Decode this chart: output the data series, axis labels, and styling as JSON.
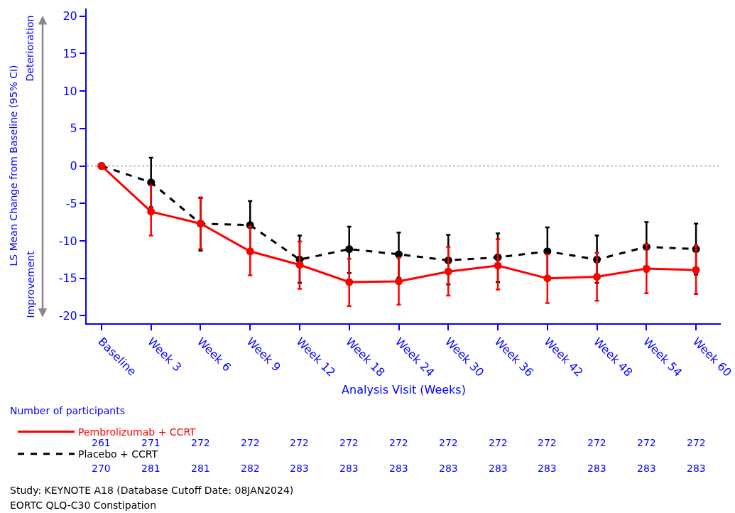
{
  "chart_data": {
    "type": "line",
    "xlabel": "Analysis Visit (Weeks)",
    "ylabel": "LS Mean Change from Baseline (95% CI)",
    "categories": [
      "Baseline",
      "Week 3",
      "Week 6",
      "Week 9",
      "Week 12",
      "Week 18",
      "Week 24",
      "Week 30",
      "Week 36",
      "Week 42",
      "Week 48",
      "Week 54",
      "Week 60"
    ],
    "series": [
      {
        "name": "Pembrolizumab + CCRT",
        "color": "#ff0000",
        "line_style": "solid",
        "values": [
          0,
          -6.1,
          -7.7,
          -11.4,
          -13.2,
          -15.5,
          -15.4,
          -14.1,
          -13.3,
          -15.0,
          -14.8,
          -13.7,
          -13.9
        ],
        "errors": [
          null,
          [
            -9.3,
            -2.6
          ],
          [
            -11.1,
            -4.2
          ],
          [
            -14.6,
            -8.1
          ],
          [
            -16.4,
            -10.1
          ],
          [
            -18.7,
            -12.4
          ],
          [
            -18.5,
            -12.3
          ],
          [
            -17.3,
            -10.8
          ],
          [
            -16.5,
            -9.8
          ],
          [
            -18.3,
            -11.8
          ],
          [
            -18.0,
            -11.6
          ],
          [
            -17.0,
            -10.5
          ],
          [
            -17.1,
            -10.6
          ]
        ]
      },
      {
        "name": "Placebo + CCRT",
        "color": "#000000",
        "line_style": "dashed",
        "values": [
          0,
          -2.2,
          -7.7,
          -7.9,
          -12.5,
          -11.1,
          -11.8,
          -12.6,
          -12.2,
          -11.4,
          -12.5,
          -10.8,
          -11.1
        ],
        "errors": [
          null,
          [
            -5.5,
            1.1
          ],
          [
            -11.3,
            -4.3
          ],
          [
            -11.1,
            -4.7
          ],
          [
            -15.6,
            -9.3
          ],
          [
            -14.3,
            -8.1
          ],
          [
            -14.9,
            -8.9
          ],
          [
            -15.8,
            -9.2
          ],
          [
            -15.5,
            -9.0
          ],
          [
            -14.7,
            -8.2
          ],
          [
            -15.6,
            -9.3
          ],
          [
            -14.1,
            -7.5
          ],
          [
            -14.5,
            -7.7
          ]
        ]
      }
    ],
    "ylim": [
      -21,
      21
    ],
    "yticks": [
      -20,
      -15,
      -10,
      -5,
      0,
      5,
      10,
      15,
      20
    ],
    "ref_lines": [
      {
        "axis": "y",
        "value": 0,
        "color": "#aaaaaa",
        "line_style": "dotted"
      }
    ],
    "marker": "circle",
    "grid": false,
    "legend": "bottom left",
    "annotations": [
      "Deterioration",
      "Improvement",
      "Number of participants",
      "261",
      "271",
      "272",
      "272",
      "272",
      "272",
      "272",
      "272",
      "272",
      "272",
      "272",
      "272",
      "272",
      "270",
      "281",
      "281",
      "282",
      "283",
      "283",
      "283",
      "283",
      "283",
      "283",
      "283",
      "283",
      "283",
      "Study: KEYNOTE A18 (Database Cutoff Date: 08JAN2024)",
      "EORTC QLQ-C30 Constipation"
    ]
  }
}
